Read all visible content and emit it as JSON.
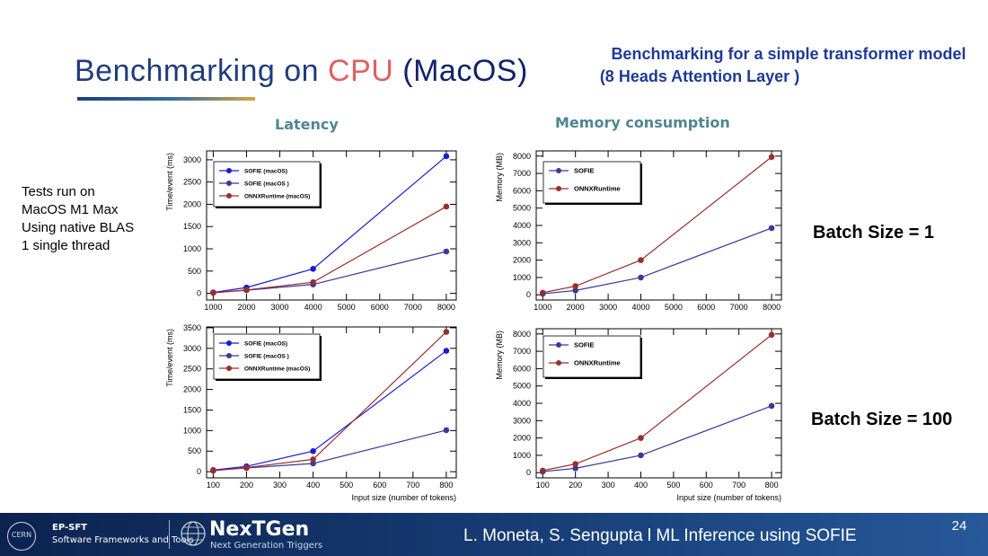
{
  "slide": {
    "title_prefix": "Benchmarking on ",
    "title_highlight": "CPU",
    "title_suffix": " (MacOS)",
    "subtitle_line1": "Benchmarking for a simple transformer model",
    "subtitle_line2": "(8 Heads Attention Layer )",
    "col_latency": "Latency",
    "col_memory": "Memory consumption",
    "notes": [
      "Tests run on",
      "MacOS M1 Max",
      "Using native BLAS",
      "1 single thread"
    ],
    "batch1": "Batch Size = 1",
    "batch100": "Batch Size = 100"
  },
  "footer": {
    "cern_logo": "CERN",
    "org_line1": "EP-SFT",
    "org_line2": "Software Frameworks and Tools",
    "brand": "NexTGen",
    "brand_sub": "Next Generation Triggers",
    "authors": "L. Moneta, S. Sengupta l   ML Inference using SOFIE",
    "page": "24"
  },
  "colors": {
    "sofie_macos": "#1a1ad6",
    "sofie_macos2": "#3a3a9a",
    "onnx": "#9a2e2e",
    "title_blue": "#1f3d7a",
    "cpu_red": "#e06060"
  },
  "chart_data": [
    {
      "id": "latency_b1",
      "type": "line",
      "xlabel": "",
      "ylabel": "Time/event (ms)",
      "x": [
        1000,
        2000,
        4000,
        8000
      ],
      "xlim": [
        800,
        8300
      ],
      "ylim": [
        -150,
        3200
      ],
      "xticks": [
        1000,
        2000,
        3000,
        4000,
        5000,
        6000,
        7000,
        8000
      ],
      "yticks": [
        0,
        500,
        1000,
        1500,
        2000,
        2500,
        3000
      ],
      "series": [
        {
          "name": "SOFIE (macOS)",
          "color": "#1a1ad6",
          "values": [
            20,
            130,
            550,
            3080
          ]
        },
        {
          "name": "SOFIE (macOS )",
          "color": "#3a3a9a",
          "values": [
            15,
            70,
            200,
            940
          ]
        },
        {
          "name": "ONNXRuntime (macOS)",
          "color": "#9a2e2e",
          "values": [
            10,
            75,
            250,
            1950
          ]
        }
      ]
    },
    {
      "id": "memory_b1",
      "type": "line",
      "xlabel": "",
      "ylabel": "Memory  (MB)",
      "x": [
        1000,
        2000,
        4000,
        8000
      ],
      "xlim": [
        800,
        8300
      ],
      "ylim": [
        -300,
        8300
      ],
      "xticks": [
        1000,
        2000,
        3000,
        4000,
        5000,
        6000,
        7000,
        8000
      ],
      "yticks": [
        0,
        1000,
        2000,
        3000,
        4000,
        5000,
        6000,
        7000,
        8000
      ],
      "series": [
        {
          "name": "SOFIE",
          "color": "#3a3a9a",
          "values": [
            60,
            250,
            1000,
            3850
          ]
        },
        {
          "name": "ONNXRuntime",
          "color": "#9a2e2e",
          "values": [
            120,
            500,
            2000,
            7950
          ]
        }
      ]
    },
    {
      "id": "latency_b100",
      "type": "line",
      "xlabel": "Input size (number of tokens)",
      "ylabel": "Time/event (ms)",
      "x": [
        100,
        200,
        400,
        800
      ],
      "xlim": [
        80,
        830
      ],
      "ylim": [
        -150,
        3520
      ],
      "xticks": [
        100,
        200,
        300,
        400,
        500,
        600,
        700,
        800
      ],
      "yticks": [
        0,
        500,
        1000,
        1500,
        2000,
        2500,
        3000,
        3500
      ],
      "series": [
        {
          "name": "SOFIE (macOS)",
          "color": "#1a1ad6",
          "values": [
            40,
            130,
            500,
            2940
          ]
        },
        {
          "name": "SOFIE (macOS )",
          "color": "#3a3a9a",
          "values": [
            30,
            90,
            200,
            1010
          ]
        },
        {
          "name": "ONNXRuntime (macOS)",
          "color": "#9a2e2e",
          "values": [
            25,
            100,
            300,
            3400
          ]
        }
      ]
    },
    {
      "id": "memory_b100",
      "type": "line",
      "xlabel": "Input size (number of tokens)",
      "ylabel": "Memory  (MB)",
      "x": [
        100,
        200,
        400,
        800
      ],
      "xlim": [
        80,
        830
      ],
      "ylim": [
        -300,
        8300
      ],
      "xticks": [
        100,
        200,
        300,
        400,
        500,
        600,
        700,
        800
      ],
      "yticks": [
        0,
        1000,
        2000,
        3000,
        4000,
        5000,
        6000,
        7000,
        8000
      ],
      "series": [
        {
          "name": "SOFIE",
          "color": "#3a3a9a",
          "values": [
            60,
            250,
            1000,
            3850
          ]
        },
        {
          "name": "ONNXRuntime",
          "color": "#9a2e2e",
          "values": [
            120,
            500,
            2000,
            7950
          ]
        }
      ]
    }
  ]
}
